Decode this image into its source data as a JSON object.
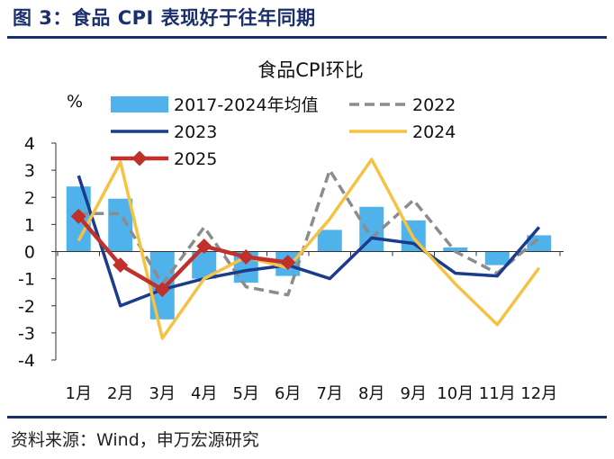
{
  "figure": {
    "title": "图 3：食品 CPI 表现好于往年同期",
    "source": "资料来源：Wind，申万宏源研究"
  },
  "chart_data": {
    "type": "bar+line",
    "title": "食品CPI环比",
    "ylabel": "%",
    "xlabel": "",
    "ylim": [
      -4,
      4
    ],
    "yticks": [
      -4,
      -3,
      -2,
      -1,
      0,
      1,
      2,
      3,
      4
    ],
    "categories": [
      "1月",
      "2月",
      "3月",
      "4月",
      "5月",
      "6月",
      "7月",
      "8月",
      "9月",
      "10月",
      "11月",
      "12月"
    ],
    "grid": false,
    "legend_position": "top",
    "bars": {
      "name": "2017-2024年均值",
      "color": "#4fb2ea",
      "values": [
        2.4,
        1.95,
        -2.5,
        -1.0,
        -1.15,
        -0.9,
        0.8,
        1.65,
        1.15,
        0.15,
        -0.5,
        0.6
      ]
    },
    "series": [
      {
        "name": "2022",
        "style": "dashed",
        "color": "#8c8c8c",
        "values": [
          1.4,
          1.4,
          -1.2,
          0.9,
          -1.3,
          -1.6,
          3.0,
          0.5,
          1.9,
          0.0,
          -0.8,
          0.5
        ]
      },
      {
        "name": "2023",
        "style": "solid",
        "color": "#1b3c8c",
        "values": [
          2.8,
          -2.0,
          -1.4,
          -1.0,
          -0.7,
          -0.5,
          -1.0,
          0.5,
          0.3,
          -0.8,
          -0.9,
          0.9
        ]
      },
      {
        "name": "2024",
        "style": "solid",
        "color": "#f6c244",
        "values": [
          0.4,
          3.3,
          -3.2,
          -1.0,
          -0.2,
          -0.6,
          1.2,
          3.4,
          0.5,
          -1.2,
          -2.7,
          -0.6
        ]
      },
      {
        "name": "2025",
        "style": "solid-marker",
        "color": "#c0302c",
        "values": [
          1.3,
          -0.5,
          -1.4,
          0.2,
          -0.2,
          -0.4,
          null,
          null,
          null,
          null,
          null,
          null
        ]
      }
    ]
  }
}
